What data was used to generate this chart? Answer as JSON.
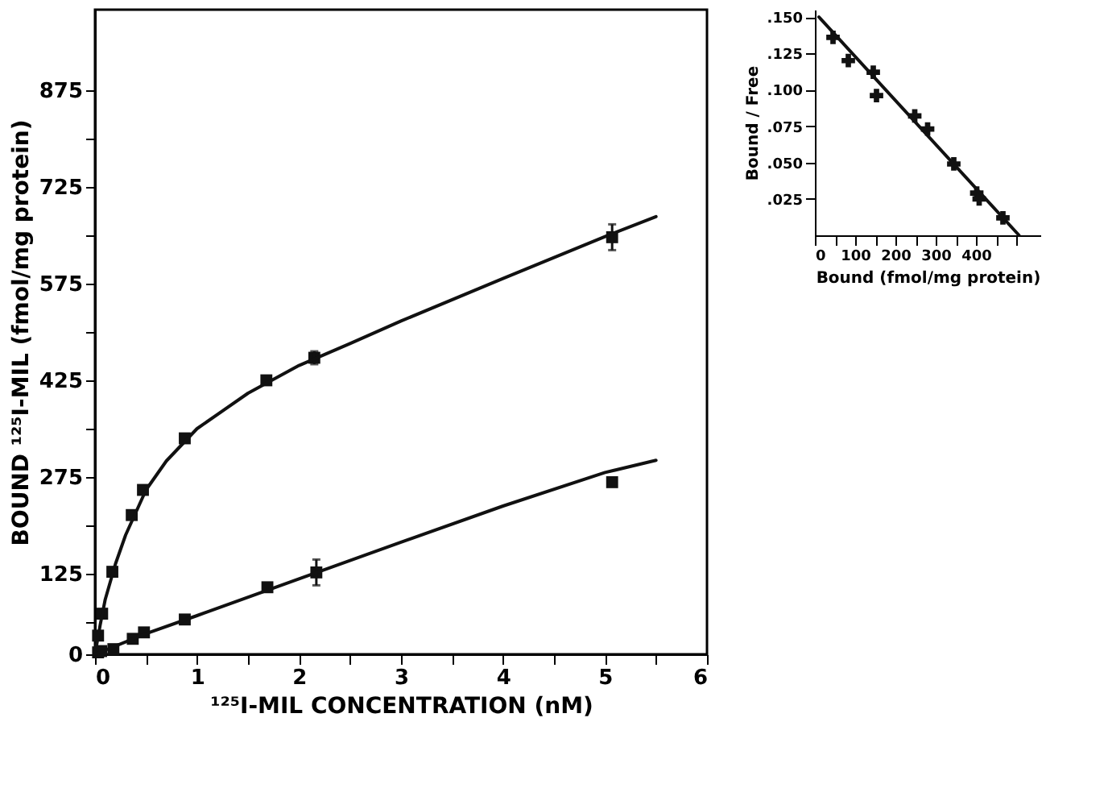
{
  "chart_data": [
    {
      "type": "scatter",
      "xlabel": "¹²⁵I-MIL CONCENTRATION (nM)",
      "ylabel": "BOUND ¹²⁵I-MIL (fmol/mg protein)",
      "xlim": [
        0,
        6
      ],
      "ylim": [
        0,
        1000
      ],
      "xticks": [
        0,
        {
          "value": 0.5,
          "label": null
        },
        1,
        {
          "value": 1.5,
          "label": null
        },
        2,
        {
          "value": 2.5,
          "label": null
        },
        3,
        {
          "value": 3.5,
          "label": null
        },
        4,
        {
          "value": 4.5,
          "label": null
        },
        5,
        {
          "value": 5.5,
          "label": null
        },
        6
      ],
      "yticks": [
        0,
        {
          "value": 50,
          "label": null
        },
        125,
        {
          "value": 200,
          "label": null
        },
        275,
        {
          "value": 350,
          "label": null
        },
        425,
        {
          "value": 500,
          "label": null
        },
        575,
        {
          "value": 650,
          "label": null
        },
        725,
        {
          "value": 800,
          "label": null
        },
        875
      ],
      "grid": false,
      "legend": false,
      "series": [
        {
          "type": "scatter",
          "marker": "square",
          "color": "#111111",
          "x": [
            0.03,
            0.07,
            0.17,
            0.36,
            0.47,
            0.88,
            1.68,
            2.15,
            5.07
          ],
          "values": [
            29,
            63,
            128,
            216,
            255,
            335,
            425,
            460,
            647
          ],
          "errors": [
            null,
            null,
            null,
            null,
            null,
            null,
            null,
            10,
            20
          ]
        },
        {
          "type": "scatter",
          "marker": "square",
          "color": "#111111",
          "x": [
            0.03,
            0.06,
            0.18,
            0.37,
            0.48,
            0.88,
            1.69,
            2.17,
            5.07
          ],
          "values": [
            3,
            5,
            8,
            24,
            34,
            54,
            104,
            127,
            267
          ],
          "errors": [
            null,
            null,
            null,
            null,
            null,
            null,
            null,
            20,
            null
          ]
        },
        {
          "type": "line",
          "marker": "none",
          "color": "#111111",
          "x": [
            0,
            0.05,
            0.1,
            0.2,
            0.3,
            0.5,
            0.7,
            1,
            1.5,
            2,
            2.5,
            3,
            4,
            5,
            5.5
          ],
          "values": [
            0,
            45,
            85,
            140,
            185,
            255,
            300,
            350,
            405,
            448,
            482,
            517,
            583,
            648,
            679
          ]
        },
        {
          "type": "line",
          "marker": "none",
          "color": "#111111",
          "x": [
            0,
            0.5,
            1,
            2,
            3,
            4,
            5,
            5.5
          ],
          "values": [
            0,
            32,
            60,
            117,
            174,
            230,
            282,
            301
          ]
        }
      ]
    },
    {
      "type": "scatter",
      "xlabel": "Bound (fmol/mg protein)",
      "ylabel": "Bound / Free",
      "xlim": [
        0,
        560
      ],
      "ylim": [
        0,
        0.155
      ],
      "xticks": [
        0,
        {
          "value": 50,
          "label": null
        },
        100,
        {
          "value": 150,
          "label": null
        },
        200,
        {
          "value": 250,
          "label": null
        },
        300,
        {
          "value": 350,
          "label": null
        },
        400,
        {
          "value": 450,
          "label": null
        },
        {
          "value": 500,
          "label": null
        }
      ],
      "yticks": [
        {
          "value": 0.025,
          "label": ".025"
        },
        {
          "value": 0.05,
          "label": ".050"
        },
        {
          "value": 0.075,
          "label": ".075"
        },
        {
          "value": 0.1,
          "label": ".100"
        },
        {
          "value": 0.125,
          "label": ".125"
        },
        {
          "value": 0.15,
          "label": ".150"
        }
      ],
      "grid": false,
      "legend": false,
      "series": [
        {
          "type": "scatter",
          "marker": "cross",
          "color": "#111111",
          "x": [
            45,
            83,
            145,
            153,
            248,
            280,
            345,
            402,
            408,
            467
          ],
          "values": [
            0.136,
            0.12,
            0.112,
            0.096,
            0.082,
            0.073,
            0.049,
            0.029,
            0.025,
            0.012
          ]
        },
        {
          "type": "line",
          "marker": "none",
          "color": "#111111",
          "x": [
            10,
            507
          ],
          "values": [
            0.15,
            0
          ]
        }
      ]
    }
  ]
}
